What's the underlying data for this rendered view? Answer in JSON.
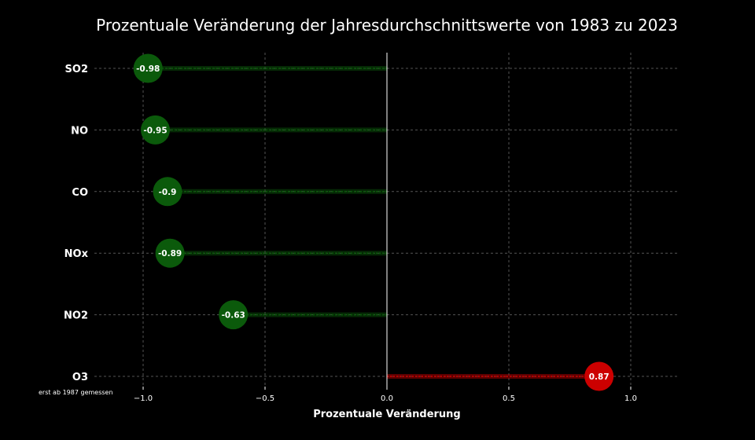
{
  "chart_data": {
    "type": "lollipop",
    "title": "Prozentuale Veränderung der Jahresdurchschnittswerte von 1983 zu 2023",
    "xlabel": "Prozentuale Veränderung",
    "ylabel": "",
    "categories": [
      "SO2",
      "NO",
      "CO",
      "NOx",
      "NO2",
      "O3"
    ],
    "values": [
      -0.98,
      -0.95,
      -0.9,
      -0.89,
      -0.63,
      0.87
    ],
    "value_labels": [
      "-0.98",
      "-0.95",
      "-0.9",
      "-0.89",
      "-0.63",
      "0.87"
    ],
    "xlim": [
      -1.2,
      1.2
    ],
    "xticks": [
      -1.0,
      -0.5,
      0.0,
      0.5,
      1.0
    ],
    "xtick_labels": [
      "−1.0",
      "−0.5",
      "0.0",
      "0.5",
      "1.0"
    ],
    "grid": true,
    "annotations": [
      {
        "text": "erst ab 1987 gemessen",
        "category": "O3"
      }
    ],
    "colors": {
      "background": "#000000",
      "negative": "#0b5a0b",
      "positive": "#cc0000",
      "grid": "#555555",
      "zero_line": "#ffffff",
      "text": "#ffffff"
    }
  }
}
